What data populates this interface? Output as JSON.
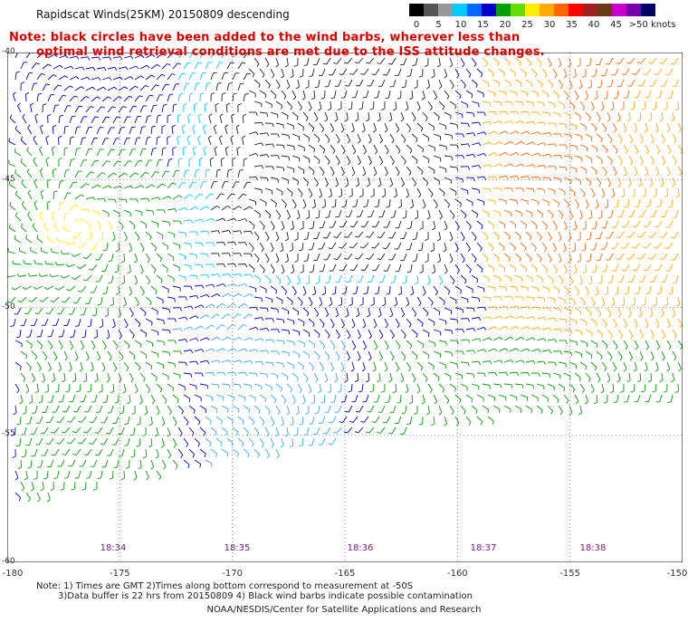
{
  "title": "Rapidscat Winds(25KM) 20150809 descending",
  "note_line1": "Note: black circles have been added to the wind barbs, wherever less than",
  "note_line2": "optimal wind retrieval conditions are met due to the ISS attitude changes.",
  "legend": {
    "labels": [
      "0",
      "5",
      "10",
      "15",
      "20",
      "25",
      "30",
      "35",
      "40",
      "45",
      ">50 knots"
    ],
    "colors": [
      "#000000",
      "#555555",
      "#999999",
      "#00ccff",
      "#0066ff",
      "#0000cc",
      "#00a000",
      "#66dd00",
      "#ffee00",
      "#ffaa00",
      "#ff6600",
      "#ff0000",
      "#a02020",
      "#6a3a10",
      "#cc00cc",
      "#7700aa",
      "#000066"
    ]
  },
  "map": {
    "lat_labels": [
      "-40",
      "-45",
      "-50",
      "-55",
      "-60"
    ],
    "lon_labels": [
      "-180",
      "-175",
      "-170",
      "-165",
      "-160",
      "-155",
      "-150"
    ],
    "time_labels": [
      "18:34",
      "18:35",
      "18:36",
      "18:37",
      "18:38"
    ]
  },
  "footer": {
    "line1": "Note: 1) Times are GMT 2)Times along bottom correspond to measurement at -50S",
    "line2": "3)Data buffer is 22 hrs from 20150809 4) Black wind barbs indicate possible contamination",
    "credit": "NOAA/NESDIS/Center for Satellite Applications and Research"
  }
}
